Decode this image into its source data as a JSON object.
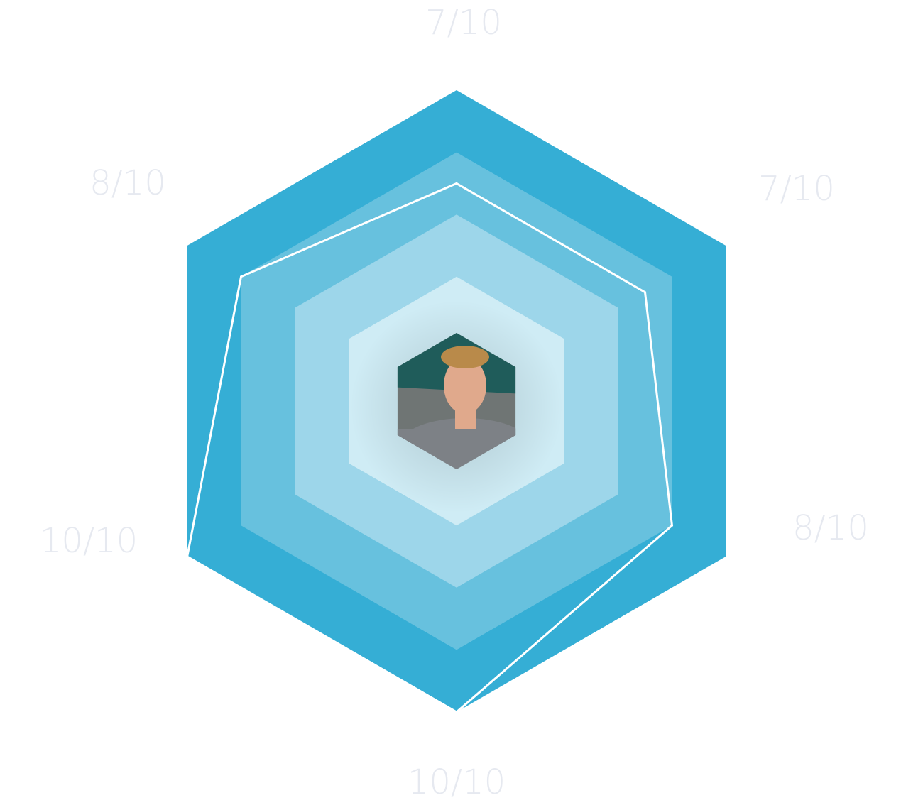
{
  "chart_data": {
    "type": "radar",
    "scale_max": 10,
    "rings": 5,
    "axes": [
      {
        "label": "7/10",
        "value": 7
      },
      {
        "label": "7/10",
        "value": 7
      },
      {
        "label": "8/10",
        "value": 8
      },
      {
        "label": "10/10",
        "value": 10
      },
      {
        "label": "10/10",
        "value": 10
      },
      {
        "label": "8/10",
        "value": 8
      }
    ],
    "colors": {
      "ring_outer": "#35aed5",
      "ring_2": "#67c1de",
      "ring_3": "#9dd6ea",
      "ring_4": "#cfecf5",
      "ring_inner": "#ffffff",
      "value_line": "#ffffff",
      "label": "#e6e9f0"
    }
  },
  "profile": {
    "avatar_icon": "person-photo-icon",
    "colors": {
      "sky": "#1f5c5a",
      "background": "#6f7574",
      "skin": "#e0a98c",
      "hair": "#b98a4a",
      "shirt": "#7d8186"
    }
  }
}
